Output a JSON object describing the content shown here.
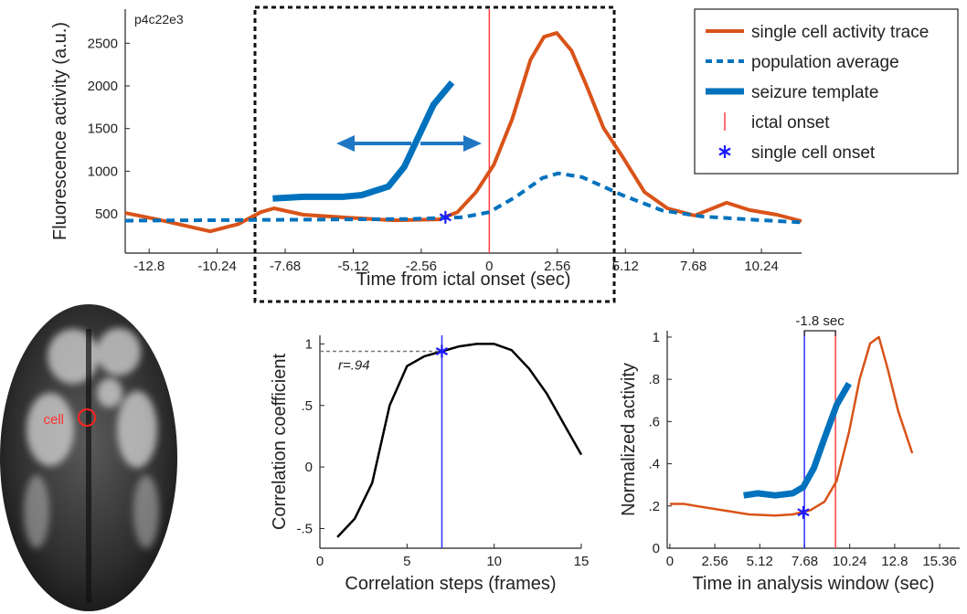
{
  "chart_data": [
    {
      "type": "line",
      "annotation": "p4c22e3",
      "xlabel": "Time from ictal onset (sec)",
      "ylabel": "Fluorescence activity (a.u.)",
      "xlim": [
        -13.7,
        11.75
      ],
      "ylim": [
        40,
        2900
      ],
      "xticks": [
        -12.8,
        -10.24,
        -7.68,
        -5.12,
        -2.56,
        0,
        2.56,
        5.12,
        7.68,
        10.24
      ],
      "yticks": [
        500,
        1000,
        1500,
        2000,
        2500
      ],
      "legend": "upper right",
      "series": [
        {
          "name": "single cell activity trace",
          "color": "#d95319",
          "style": "solid",
          "width": 4,
          "x": [
            -13.7,
            -12.5,
            -10.5,
            -9.45,
            -8.6,
            -8.1,
            -7.0,
            -5.3,
            -3.6,
            -1.9,
            -1.2,
            -0.5,
            0.17,
            0.86,
            1.55,
            2.06,
            2.54,
            3.09,
            3.61,
            4.3,
            4.98,
            5.84,
            6.7,
            7.73,
            8.93,
            9.79,
            10.82,
            11.75
          ],
          "values": [
            510,
            435,
            295,
            380,
            520,
            565,
            490,
            455,
            425,
            435,
            520,
            755,
            1075,
            1610,
            2305,
            2575,
            2620,
            2415,
            2040,
            1505,
            1185,
            755,
            565,
            480,
            630,
            545,
            490,
            415
          ]
        },
        {
          "name": "population average",
          "color": "#0072bd",
          "style": "dashed",
          "width": 4,
          "x": [
            -13.7,
            -8,
            -3,
            -1,
            0,
            1,
            2,
            2.6,
            3.5,
            5,
            6.5,
            8,
            10,
            11.75
          ],
          "values": [
            420,
            430,
            440,
            460,
            520,
            700,
            920,
            975,
            930,
            720,
            540,
            470,
            430,
            400
          ]
        },
        {
          "name": "seizure template",
          "color": "#0072bd",
          "style": "solid",
          "width": 7,
          "x": [
            -8.15,
            -7,
            -5.5,
            -4.8,
            -3.8,
            -3.2,
            -2.6,
            -2.1,
            -1.4
          ],
          "values": [
            680,
            700,
            700,
            720,
            820,
            1050,
            1450,
            1780,
            2040
          ]
        }
      ],
      "vlines": [
        {
          "name": "ictal onset",
          "x": 0,
          "color": "#ff4040"
        }
      ],
      "points": [
        {
          "name": "single cell onset",
          "x": -1.65,
          "y": 460,
          "color": "#1a1aff"
        }
      ]
    },
    {
      "type": "line",
      "annotation": "r=.94",
      "xlabel": "Correlation steps (frames)",
      "ylabel": "Correlation coefficient",
      "xlim": [
        0,
        15
      ],
      "ylim": [
        -0.66,
        1.07
      ],
      "xticks": [
        0,
        5,
        10,
        15
      ],
      "yticks": [
        {
          "value": -0.5,
          "label": "-.5"
        },
        0,
        {
          "value": 0.5,
          "label": ".5"
        },
        1
      ],
      "series": [
        {
          "color": "#000000",
          "style": "solid",
          "width": 2.5,
          "x": [
            1,
            2,
            3,
            4,
            5,
            6,
            7,
            8,
            9,
            10,
            11,
            12,
            13,
            14,
            15
          ],
          "values": [
            -0.57,
            -0.42,
            -0.13,
            0.5,
            0.82,
            0.9,
            0.94,
            0.98,
            1.0,
            1.0,
            0.95,
            0.8,
            0.6,
            0.35,
            0.1
          ]
        }
      ],
      "vlines": [
        {
          "x": 7,
          "color": "#3030ff"
        }
      ],
      "points": [
        {
          "x": 7,
          "y": 0.94,
          "color": "#1a1aff"
        }
      ]
    },
    {
      "type": "line",
      "annotation": "-1.8 sec",
      "xlabel": "Time in analysis window (sec)",
      "ylabel": "Normalized activity",
      "xlim": [
        -0.15,
        16.5
      ],
      "ylim": [
        0,
        1.03
      ],
      "xticks": [
        0,
        2.56,
        5.12,
        7.68,
        10.24,
        12.8,
        15.36
      ],
      "yticks": [
        0,
        {
          "value": 0.2,
          "label": ".2"
        },
        {
          "value": 0.4,
          "label": ".4"
        },
        {
          "value": 0.6,
          "label": ".6"
        },
        {
          "value": 0.8,
          "label": ".8"
        },
        1
      ],
      "series": [
        {
          "color": "#d95319",
          "style": "solid",
          "width": 2.5,
          "x": [
            0,
            0.8,
            1.5,
            3,
            4.5,
            6,
            7,
            8,
            8.8,
            9.5,
            10.2,
            10.8,
            11.4,
            11.9,
            12.4,
            13,
            13.8
          ],
          "values": [
            0.21,
            0.21,
            0.2,
            0.18,
            0.16,
            0.155,
            0.16,
            0.18,
            0.22,
            0.32,
            0.55,
            0.8,
            0.97,
            1.0,
            0.85,
            0.65,
            0.45
          ]
        },
        {
          "color": "#0072bd",
          "style": "solid",
          "width": 7,
          "x": [
            4.2,
            5,
            6,
            7,
            7.6,
            8.2,
            8.8,
            9.5,
            10.2
          ],
          "values": [
            0.25,
            0.26,
            0.25,
            0.26,
            0.29,
            0.38,
            0.52,
            0.68,
            0.78
          ]
        }
      ],
      "vlines": [
        {
          "x": 7.66,
          "color": "#3030ff"
        },
        {
          "x": 9.43,
          "color": "#ff4040"
        }
      ],
      "points": [
        {
          "x": 7.6,
          "y": 0.17,
          "color": "#1a1aff"
        }
      ]
    }
  ],
  "image": {
    "label": "cell"
  }
}
